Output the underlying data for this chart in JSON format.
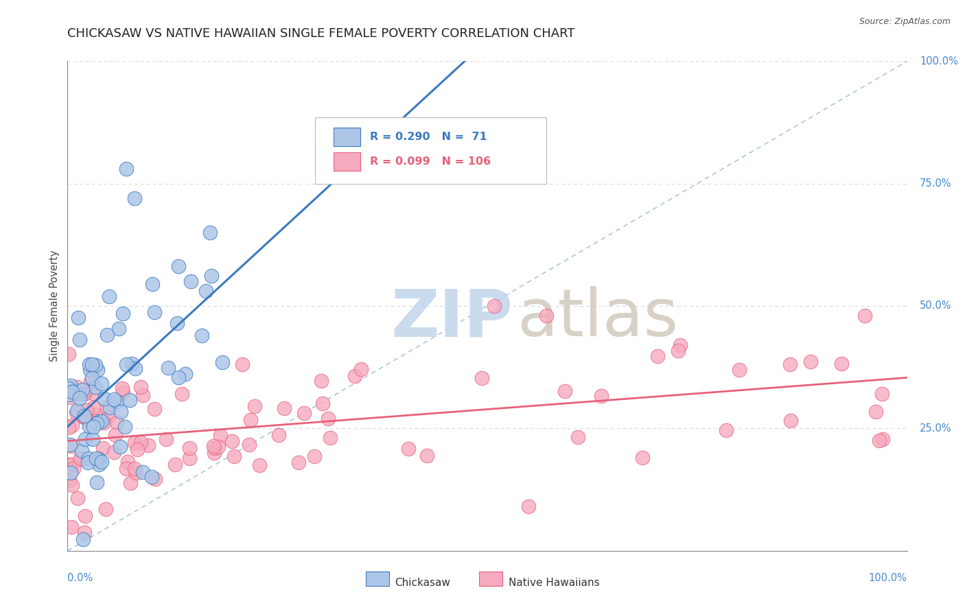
{
  "title": "CHICKASAW VS NATIVE HAWAIIAN SINGLE FEMALE POVERTY CORRELATION CHART",
  "source": "Source: ZipAtlas.com",
  "ylabel": "Single Female Poverty",
  "ytick_labels": [
    "25.0%",
    "50.0%",
    "75.0%",
    "100.0%"
  ],
  "ytick_values": [
    0.25,
    0.5,
    0.75,
    1.0
  ],
  "legend_chickasaw": "Chickasaw",
  "legend_native": "Native Hawaiians",
  "R_chickasaw": 0.29,
  "N_chickasaw": 71,
  "R_native": 0.099,
  "N_native": 106,
  "color_chickasaw": "#adc6e8",
  "color_native": "#f5aabf",
  "color_line_chickasaw": "#3a7abf",
  "color_line_native": "#e8607a",
  "watermark_zip_color": "#c5d8ec",
  "watermark_atlas_color": "#d4ccc0",
  "bg_color": "#ffffff",
  "grid_color": "#d8d8d8",
  "ref_line_color": "#9bbcd6",
  "title_color": "#222222",
  "source_color": "#555555",
  "label_color": "#4488cc",
  "axis_color": "#888888",
  "legend_text_color": "#3a7abf",
  "legend_text_color2": "#e8607a"
}
